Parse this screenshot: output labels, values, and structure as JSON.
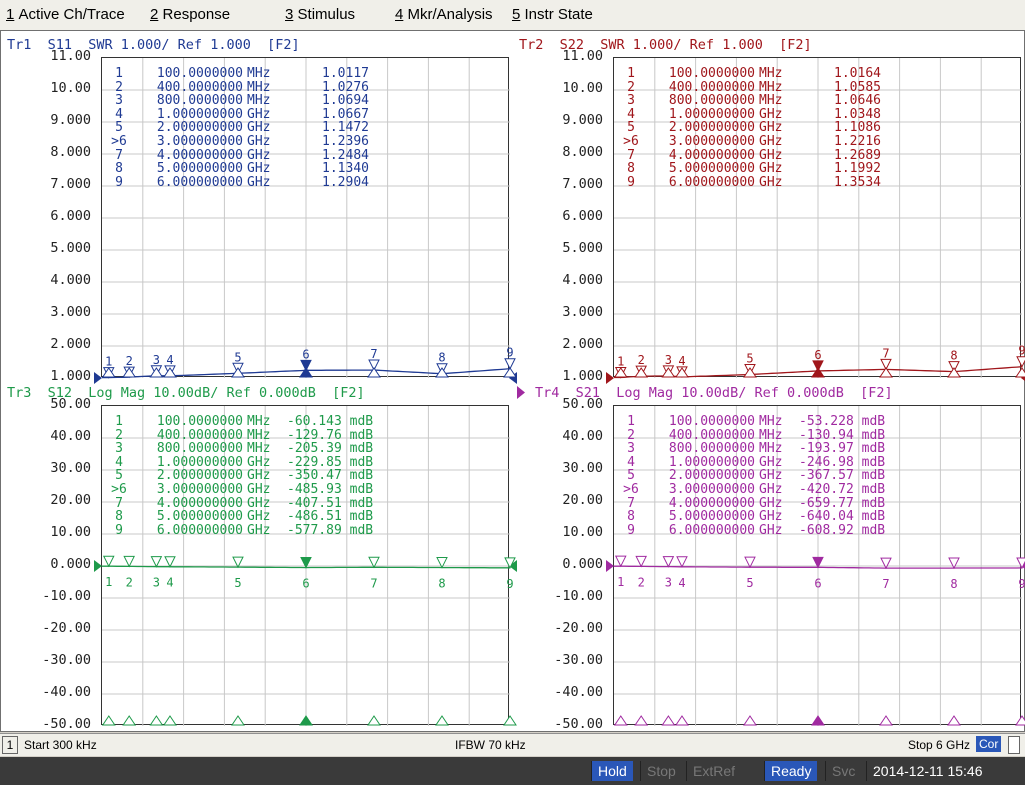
{
  "menu": [
    {
      "key": "1",
      "label": "Active Ch/Trace"
    },
    {
      "key": "2",
      "label": "Response"
    },
    {
      "key": "3",
      "label": "Stimulus"
    },
    {
      "key": "4",
      "label": "Mkr/Analysis"
    },
    {
      "key": "5",
      "label": "Instr State"
    }
  ],
  "traces": [
    {
      "id": "tr1",
      "title": "Tr1  S11  SWR 1.000/ Ref 1.000  [F2]",
      "color": "#1f3a93",
      "yticks": [
        "11.00",
        "10.00",
        "9.000",
        "8.000",
        "7.000",
        "6.000",
        "5.000",
        "4.000",
        "3.000",
        "2.000",
        "1.000"
      ],
      "markers": [
        {
          "id": "1",
          "freq": "100.0000000",
          "unit": "MHz",
          "value": "1.0117"
        },
        {
          "id": "2",
          "freq": "400.0000000",
          "unit": "MHz",
          "value": "1.0276"
        },
        {
          "id": "3",
          "freq": "800.0000000",
          "unit": "MHz",
          "value": "1.0694"
        },
        {
          "id": "4",
          "freq": "1.000000000",
          "unit": "GHz",
          "value": "1.0667"
        },
        {
          "id": "5",
          "freq": "2.000000000",
          "unit": "GHz",
          "value": "1.1472"
        },
        {
          "id": ">6",
          "freq": "3.000000000",
          "unit": "GHz",
          "value": "1.2396"
        },
        {
          "id": "7",
          "freq": "4.000000000",
          "unit": "GHz",
          "value": "1.2484"
        },
        {
          "id": "8",
          "freq": "5.000000000",
          "unit": "GHz",
          "value": "1.1340"
        },
        {
          "id": "9",
          "freq": "6.000000000",
          "unit": "GHz",
          "value": "1.2904"
        }
      ]
    },
    {
      "id": "tr2",
      "title": "Tr2  S22  SWR 1.000/ Ref 1.000  [F2]",
      "color": "#a0161b",
      "yticks": [
        "11.00",
        "10.00",
        "9.000",
        "8.000",
        "7.000",
        "6.000",
        "5.000",
        "4.000",
        "3.000",
        "2.000",
        "1.000"
      ],
      "markers": [
        {
          "id": "1",
          "freq": "100.0000000",
          "unit": "MHz",
          "value": "1.0164"
        },
        {
          "id": "2",
          "freq": "400.0000000",
          "unit": "MHz",
          "value": "1.0585"
        },
        {
          "id": "3",
          "freq": "800.0000000",
          "unit": "MHz",
          "value": "1.0646"
        },
        {
          "id": "4",
          "freq": "1.000000000",
          "unit": "GHz",
          "value": "1.0348"
        },
        {
          "id": "5",
          "freq": "2.000000000",
          "unit": "GHz",
          "value": "1.1086"
        },
        {
          "id": ">6",
          "freq": "3.000000000",
          "unit": "GHz",
          "value": "1.2216"
        },
        {
          "id": "7",
          "freq": "4.000000000",
          "unit": "GHz",
          "value": "1.2689"
        },
        {
          "id": "8",
          "freq": "5.000000000",
          "unit": "GHz",
          "value": "1.1992"
        },
        {
          "id": "9",
          "freq": "6.000000000",
          "unit": "GHz",
          "value": "1.3534"
        }
      ]
    },
    {
      "id": "tr3",
      "title": "Tr3  S12  Log Mag 10.00dB/ Ref 0.000dB  [F2]",
      "color": "#1e9a4a",
      "yticks": [
        "50.00",
        "40.00",
        "30.00",
        "20.00",
        "10.00",
        "0.000",
        "-10.00",
        "-20.00",
        "-30.00",
        "-40.00",
        "-50.00"
      ],
      "markers": [
        {
          "id": "1",
          "freq": "100.0000000",
          "unit": "MHz",
          "value": "-60.143 mdB"
        },
        {
          "id": "2",
          "freq": "400.0000000",
          "unit": "MHz",
          "value": "-129.76 mdB"
        },
        {
          "id": "3",
          "freq": "800.0000000",
          "unit": "MHz",
          "value": "-205.39 mdB"
        },
        {
          "id": "4",
          "freq": "1.000000000",
          "unit": "GHz",
          "value": "-229.85 mdB"
        },
        {
          "id": "5",
          "freq": "2.000000000",
          "unit": "GHz",
          "value": "-350.47 mdB"
        },
        {
          "id": ">6",
          "freq": "3.000000000",
          "unit": "GHz",
          "value": "-485.93 mdB"
        },
        {
          "id": "7",
          "freq": "4.000000000",
          "unit": "GHz",
          "value": "-407.51 mdB"
        },
        {
          "id": "8",
          "freq": "5.000000000",
          "unit": "GHz",
          "value": "-486.51 mdB"
        },
        {
          "id": "9",
          "freq": "6.000000000",
          "unit": "GHz",
          "value": "-577.89 mdB"
        }
      ]
    },
    {
      "id": "tr4",
      "title": "Tr4  S21  Log Mag 10.00dB/ Ref 0.000dB  [F2]",
      "color": "#a02aa0",
      "yticks": [
        "50.00",
        "40.00",
        "30.00",
        "20.00",
        "10.00",
        "0.000",
        "-10.00",
        "-20.00",
        "-30.00",
        "-40.00",
        "-50.00"
      ],
      "markers": [
        {
          "id": "1",
          "freq": "100.0000000",
          "unit": "MHz",
          "value": "-53.228 mdB"
        },
        {
          "id": "2",
          "freq": "400.0000000",
          "unit": "MHz",
          "value": "-130.94 mdB"
        },
        {
          "id": "3",
          "freq": "800.0000000",
          "unit": "MHz",
          "value": "-193.97 mdB"
        },
        {
          "id": "4",
          "freq": "1.000000000",
          "unit": "GHz",
          "value": "-246.98 mdB"
        },
        {
          "id": "5",
          "freq": "2.000000000",
          "unit": "GHz",
          "value": "-367.57 mdB"
        },
        {
          "id": ">6",
          "freq": "3.000000000",
          "unit": "GHz",
          "value": "-420.72 mdB"
        },
        {
          "id": "7",
          "freq": "4.000000000",
          "unit": "GHz",
          "value": "-659.77 mdB"
        },
        {
          "id": "8",
          "freq": "5.000000000",
          "unit": "GHz",
          "value": "-640.04 mdB"
        },
        {
          "id": "9",
          "freq": "6.000000000",
          "unit": "GHz",
          "value": "-608.92 mdB"
        }
      ]
    }
  ],
  "channel_bar": {
    "channel": "1",
    "start": "Start 300 kHz",
    "ifbw": "IFBW 70 kHz",
    "stop": "Stop 6 GHz",
    "cor": "Cor"
  },
  "status": {
    "hold": "Hold",
    "stop": "Stop",
    "extref": "ExtRef",
    "ready": "Ready",
    "svc": "Svc",
    "datetime": "2014-12-11 15:46"
  }
}
